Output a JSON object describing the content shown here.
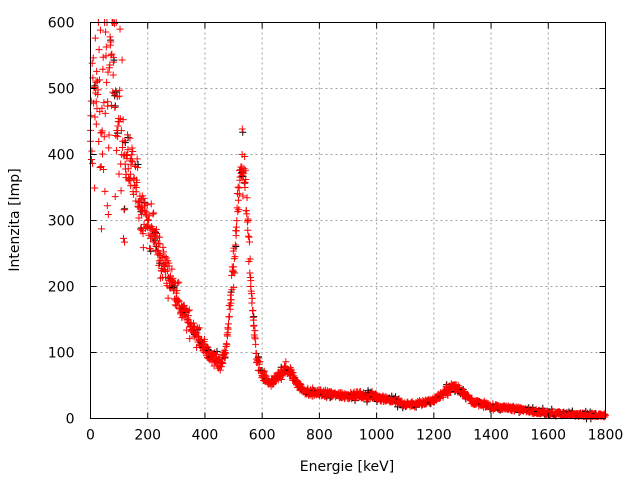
{
  "chart_data": {
    "type": "scatter",
    "title": "",
    "xlabel": "Energie [keV]",
    "ylabel": "Intenzita [Imp]",
    "xlim": [
      0,
      1800
    ],
    "ylim": [
      0,
      600
    ],
    "xticks": [
      "0",
      "200",
      "400",
      "600",
      "800",
      "1000",
      "1200",
      "1400",
      "1600",
      "1800"
    ],
    "yticks": [
      "0",
      "100",
      "200",
      "300",
      "400",
      "500",
      "600"
    ],
    "grid": true,
    "legend": "none",
    "marker": "plus",
    "color": "#ff0000",
    "x": [
      0,
      20,
      40,
      60,
      80,
      100,
      120,
      140,
      160,
      180,
      200,
      220,
      240,
      260,
      280,
      300,
      320,
      340,
      360,
      380,
      400,
      420,
      440,
      460,
      470,
      480,
      490,
      500,
      510,
      520,
      530,
      540,
      550,
      560,
      570,
      580,
      600,
      620,
      640,
      660,
      680,
      700,
      720,
      740,
      760,
      800,
      850,
      900,
      950,
      1000,
      1050,
      1100,
      1150,
      1200,
      1240,
      1270,
      1300,
      1340,
      1400,
      1500,
      1600,
      1700,
      1800
    ],
    "y": [
      420,
      480,
      470,
      480,
      540,
      450,
      400,
      370,
      350,
      320,
      300,
      280,
      250,
      230,
      210,
      190,
      165,
      150,
      135,
      120,
      105,
      95,
      88,
      85,
      100,
      130,
      180,
      230,
      290,
      340,
      400,
      350,
      300,
      200,
      140,
      90,
      65,
      55,
      55,
      65,
      75,
      70,
      55,
      45,
      40,
      38,
      36,
      35,
      35,
      33,
      28,
      22,
      22,
      28,
      40,
      50,
      40,
      25,
      18,
      14,
      8,
      6,
      5
    ]
  }
}
